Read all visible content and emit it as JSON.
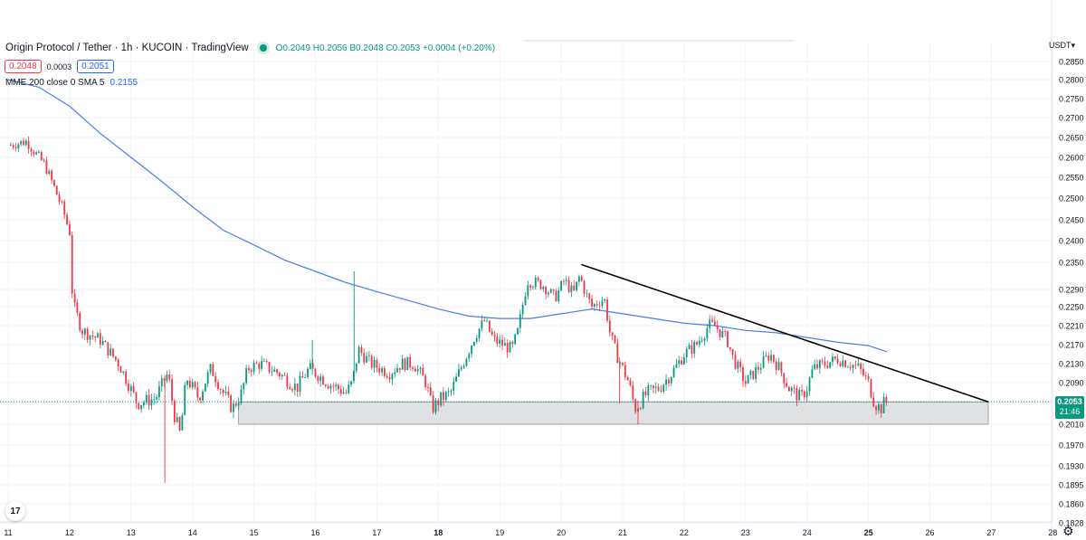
{
  "header": {
    "symbol": "Origin Protocol / Tether · 1h · KUCOIN · TradingView",
    "ohlc": "O0.2049 H0.2056 B0.2048 C0.2053 +0.0004 (+0.20%)",
    "bid": "0.2048",
    "spread": "0.0003",
    "ask": "0.2051"
  },
  "indicator": {
    "label": "MME 200 close 0 SMA 5",
    "value": "0.2155",
    "color": "#2962ff"
  },
  "axis_unit": "USDT",
  "last_price": {
    "value": "0.2053",
    "countdown": "21:46"
  },
  "colors": {
    "up": "#089981",
    "down": "#f23645",
    "ma": "#4a7cf0",
    "zone_fill": "#e0e1e3"
  },
  "chart_data": {
    "type": "candlestick",
    "timeframe": "1h",
    "xlabel": "",
    "ylabel": "",
    "x_ticks": [
      "11",
      "12",
      "13",
      "14",
      "15",
      "16",
      "17",
      "18",
      "19",
      "20",
      "21",
      "22",
      "23",
      "24",
      "25",
      "26",
      "27",
      "28"
    ],
    "bold_ticks": [
      "18",
      "25"
    ],
    "y_ticks": [
      "0.1828",
      "0.1860",
      "0.1895",
      "0.1930",
      "0.1970",
      "0.2010",
      "0.2050",
      "0.2090",
      "0.2130",
      "0.2170",
      "0.2210",
      "0.2250",
      "0.2290",
      "0.2350",
      "0.2400",
      "0.2450",
      "0.2500",
      "0.2550",
      "0.2600",
      "0.2650",
      "0.2700",
      "0.2750",
      "0.2800",
      "0.2850"
    ],
    "ylim": [
      0.1828,
      0.288
    ],
    "xlim_days": [
      11.0,
      28.0
    ],
    "price_path": [
      [
        11.0,
        0.263
      ],
      [
        11.3,
        0.264
      ],
      [
        11.6,
        0.258
      ],
      [
        11.9,
        0.247
      ],
      [
        12.0,
        0.242
      ],
      [
        12.05,
        0.226
      ],
      [
        12.2,
        0.22
      ],
      [
        12.5,
        0.218
      ],
      [
        12.8,
        0.213
      ],
      [
        12.95,
        0.209
      ],
      [
        13.1,
        0.205
      ],
      [
        13.4,
        0.206
      ],
      [
        13.6,
        0.211
      ],
      [
        13.7,
        0.203
      ],
      [
        13.8,
        0.199
      ],
      [
        13.9,
        0.21
      ],
      [
        14.1,
        0.206
      ],
      [
        14.3,
        0.212
      ],
      [
        14.5,
        0.207
      ],
      [
        14.65,
        0.204
      ],
      [
        14.8,
        0.207
      ],
      [
        14.9,
        0.212
      ],
      [
        15.1,
        0.213
      ],
      [
        15.4,
        0.211
      ],
      [
        15.7,
        0.208
      ],
      [
        15.9,
        0.212
      ],
      [
        16.2,
        0.209
      ],
      [
        16.5,
        0.207
      ],
      [
        16.6,
        0.209
      ],
      [
        16.7,
        0.216
      ],
      [
        16.9,
        0.213
      ],
      [
        17.2,
        0.211
      ],
      [
        17.4,
        0.213
      ],
      [
        17.6,
        0.213
      ],
      [
        17.8,
        0.209
      ],
      [
        17.9,
        0.204
      ],
      [
        18.05,
        0.206
      ],
      [
        18.2,
        0.207
      ],
      [
        18.4,
        0.213
      ],
      [
        18.6,
        0.219
      ],
      [
        18.75,
        0.222
      ],
      [
        18.9,
        0.218
      ],
      [
        19.05,
        0.217
      ],
      [
        19.2,
        0.216
      ],
      [
        19.3,
        0.22
      ],
      [
        19.45,
        0.231
      ],
      [
        19.7,
        0.23
      ],
      [
        19.9,
        0.227
      ],
      [
        20.05,
        0.231
      ],
      [
        20.2,
        0.228
      ],
      [
        20.3,
        0.232
      ],
      [
        20.4,
        0.228
      ],
      [
        20.5,
        0.225
      ],
      [
        20.7,
        0.227
      ],
      [
        20.8,
        0.219
      ],
      [
        20.9,
        0.215
      ],
      [
        21.1,
        0.209
      ],
      [
        21.2,
        0.204
      ],
      [
        21.4,
        0.207
      ],
      [
        21.6,
        0.208
      ],
      [
        21.8,
        0.211
      ],
      [
        22.0,
        0.215
      ],
      [
        22.2,
        0.217
      ],
      [
        22.4,
        0.221
      ],
      [
        22.5,
        0.221
      ],
      [
        22.7,
        0.218
      ],
      [
        22.8,
        0.214
      ],
      [
        23.0,
        0.209
      ],
      [
        23.2,
        0.212
      ],
      [
        23.4,
        0.215
      ],
      [
        23.55,
        0.212
      ],
      [
        23.7,
        0.208
      ],
      [
        23.9,
        0.206
      ],
      [
        24.0,
        0.208
      ],
      [
        24.1,
        0.212
      ],
      [
        24.3,
        0.213
      ],
      [
        24.5,
        0.214
      ],
      [
        24.7,
        0.213
      ],
      [
        24.85,
        0.212
      ],
      [
        25.0,
        0.209
      ],
      [
        25.1,
        0.205
      ],
      [
        25.2,
        0.204
      ],
      [
        25.25,
        0.205
      ],
      [
        25.3,
        0.2053
      ]
    ],
    "spikes": [
      {
        "day": 13.55,
        "low": 0.1898
      },
      {
        "day": 16.63,
        "high": 0.233
      },
      {
        "day": 15.95,
        "high": 0.218
      },
      {
        "day": 20.95,
        "low": 0.205
      },
      {
        "day": 21.25,
        "low": 0.201
      }
    ],
    "ma200": [
      [
        11.0,
        0.28
      ],
      [
        11.5,
        0.278
      ],
      [
        12.0,
        0.273
      ],
      [
        12.5,
        0.266
      ],
      [
        13.0,
        0.26
      ],
      [
        13.5,
        0.254
      ],
      [
        14.0,
        0.248
      ],
      [
        14.5,
        0.2425
      ],
      [
        15.0,
        0.239
      ],
      [
        15.5,
        0.2355
      ],
      [
        16.0,
        0.233
      ],
      [
        16.5,
        0.2305
      ],
      [
        17.0,
        0.2285
      ],
      [
        17.5,
        0.2265
      ],
      [
        18.0,
        0.2245
      ],
      [
        18.5,
        0.223
      ],
      [
        19.0,
        0.2225
      ],
      [
        19.5,
        0.2225
      ],
      [
        20.0,
        0.2235
      ],
      [
        20.5,
        0.2245
      ],
      [
        21.0,
        0.2235
      ],
      [
        21.5,
        0.2225
      ],
      [
        22.0,
        0.2215
      ],
      [
        22.5,
        0.221
      ],
      [
        23.0,
        0.22
      ],
      [
        23.5,
        0.2195
      ],
      [
        24.0,
        0.2185
      ],
      [
        24.5,
        0.2175
      ],
      [
        25.0,
        0.2168
      ],
      [
        25.3,
        0.2155
      ]
    ],
    "trendline": [
      [
        20.33,
        0.2345
      ],
      [
        26.95,
        0.2053
      ]
    ],
    "support_zone": {
      "day_start": 14.75,
      "day_end": 26.95,
      "low": 0.201,
      "high": 0.2053
    },
    "last_price_line": 0.2053
  }
}
